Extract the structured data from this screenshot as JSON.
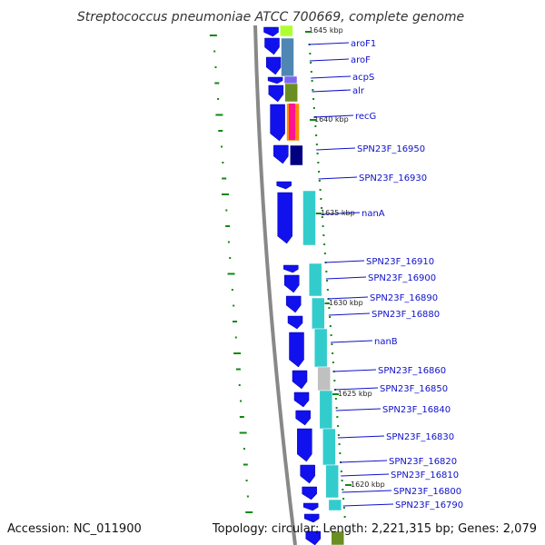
{
  "title": "Streptococcus pneumoniae ATCC 700669, complete genome",
  "footer": {
    "accession": "Accession: NC_011900",
    "summary": "Topology: circular; Length: 2,221,315 bp; Genes: 2,079"
  },
  "colors": {
    "backbone": "#888888",
    "cds_forward": "#1111ee",
    "cds_dark": "#000080",
    "tick_green": "#118811",
    "label_blue": "#1010cc",
    "cog_cyan": "#33cccc",
    "cog_steel": "#4f86b3",
    "cog_olive": "#6b8e23",
    "cog_purple": "#7b68ee",
    "cog_orange": "#ff8c00",
    "cog_magenta": "#ff1493",
    "cog_lime": "#adff2f",
    "cog_gray": "#c0c0c0"
  },
  "kbp_ticks": [
    "1645 kbp",
    "1640 kbp",
    "1635 kbp",
    "1630 kbp",
    "1625 kbp",
    "1620 kbp"
  ],
  "genes": [
    "aroF1",
    "aroF",
    "acpS",
    "alr",
    "recG",
    "SPN23F_16950",
    "SPN23F_16930",
    "nanA",
    "SPN23F_16910",
    "SPN23F_16900",
    "SPN23F_16890",
    "SPN23F_16880",
    "nanB",
    "SPN23F_16860",
    "SPN23F_16850",
    "SPN23F_16840",
    "SPN23F_16830",
    "SPN23F_16820",
    "SPN23F_16810",
    "SPN23F_16800",
    "SPN23F_16790"
  ]
}
